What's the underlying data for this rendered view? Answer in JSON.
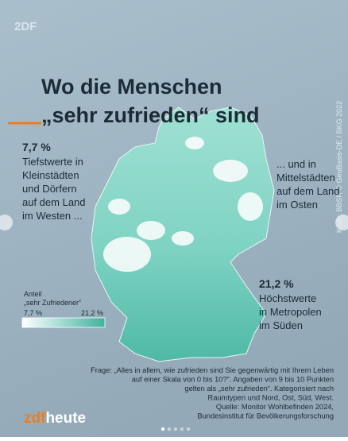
{
  "logo": "2DF",
  "title": [
    "Wo die Menschen",
    "„sehr zufrieden“ sind"
  ],
  "credit": "Karte: BBSR © GeoBasis-DE / BKG 2022",
  "annotations": [
    {
      "value": "7,7 %",
      "text": [
        "Tiefstwerte in",
        "Kleinstädten",
        "und Dörfern",
        "auf dem Land",
        "im Westen ..."
      ]
    },
    {
      "text": [
        "... und in",
        "Mittelstädten",
        "auf dem Land",
        "im Osten"
      ]
    },
    {
      "value": "21,2 %",
      "text": [
        "Höchstwerte",
        "in Metropolen",
        "im Süden"
      ]
    }
  ],
  "legend": {
    "title": [
      "Anteil",
      "„sehr Zufriedener“"
    ],
    "min": "7,7 %",
    "max": "21,2 %"
  },
  "footnote": [
    "Frage: „Alles in allem, wie zufrieden sind Sie gegenwärtig mit Ihrem Leben",
    "auf einer Skala von 0 bis 10?“. Angaben von 9 bis 10 Punkten",
    "gelten als „sehr zufrieden“. Kategorisiert nach",
    "Raumtypen und Nord, Ost, Süd, West.",
    "Quelle: Monitor Wohlbefinden 2024,",
    "Bundesinstitut für Bevölkerungsforschung"
  ],
  "brand": {
    "a": "zdf",
    "b": "heute"
  }
}
